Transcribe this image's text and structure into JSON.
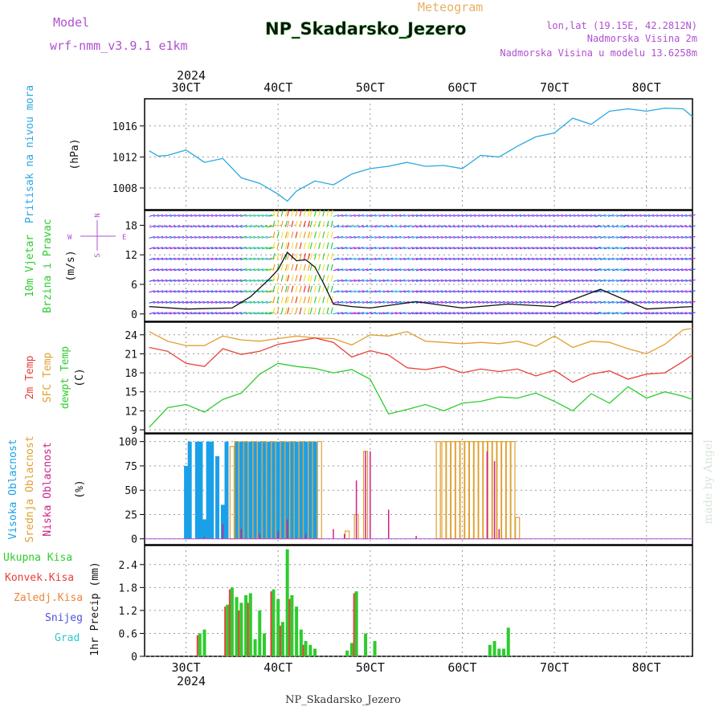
{
  "header": {
    "model_label": "Model",
    "model_value": "wrf-nmm_v3.9.1 e1km",
    "kind": "Meteogram",
    "station": "NP_Skadarsko_Jezero",
    "lonlat": "lon,lat (19.15E, 42.2812N)",
    "elev": "Nadmorska Visina 2m",
    "elev_model": "Nadmorska Visina u modelu 13.6258m",
    "footer": "NP_Skadarsko_Jezero",
    "watermark": "made by Angel"
  },
  "time_axis": {
    "top_year": "2024",
    "bottom_year": "2024",
    "ticks": [
      "30CT",
      "40CT",
      "50CT",
      "60CT",
      "70CT",
      "80CT"
    ]
  },
  "colors": {
    "pressure": "#29a8e0",
    "temp2m": "#e8403a",
    "sfctemp": "#e0a030",
    "dewpt": "#2ecc2e",
    "cloud_high": "#1aa0e8",
    "cloud_mid": "#e0a030",
    "cloud_low": "#d0208a",
    "precip_total": "#2ecc2e",
    "precip_conv": "#e8403a",
    "wind_label": "#2ecc2e",
    "wind_dir": "#b040d0"
  },
  "chart_data": [
    {
      "type": "line",
      "panel": "pressure",
      "ylabel": "Pritisak na nivou mora",
      "unit": "(hPa)",
      "yticks": [
        1008,
        1012,
        1016
      ],
      "ylim": [
        1005.2,
        1019.5
      ],
      "x": [
        2.6,
        2.7,
        2.8,
        3.0,
        3.2,
        3.4,
        3.6,
        3.8,
        4.0,
        4.1,
        4.2,
        4.4,
        4.6,
        4.8,
        5.0,
        5.2,
        5.4,
        5.6,
        5.8,
        6.0,
        6.2,
        6.4,
        6.6,
        6.8,
        7.0,
        7.2,
        7.4,
        7.6,
        7.8,
        8.0,
        8.2,
        8.4,
        8.5
      ],
      "series": [
        {
          "name": "Pritisak na nivou mora",
          "values": [
            1012.8,
            1012.1,
            1012.2,
            1012.9,
            1011.3,
            1011.8,
            1009.3,
            1008.6,
            1007.2,
            1006.3,
            1007.6,
            1008.9,
            1008.4,
            1009.8,
            1010.5,
            1010.8,
            1011.3,
            1010.8,
            1010.9,
            1010.5,
            1012.2,
            1012.0,
            1013.4,
            1014.6,
            1015.1,
            1017.0,
            1016.2,
            1017.9,
            1018.2,
            1017.9,
            1018.3,
            1018.2,
            1017.2
          ]
        }
      ]
    },
    {
      "type": "wind",
      "panel": "wind",
      "ylabel": "10m Vjetar",
      "ylabel2": "Brzina i Pravac",
      "unit": "(m/s)",
      "compass": {
        "n": "N",
        "s": "S",
        "e": "E",
        "w": "W"
      },
      "yticks": [
        0,
        6,
        12,
        18
      ],
      "ylim": [
        -1.5,
        21
      ],
      "x": [
        2.6,
        3.0,
        3.5,
        3.7,
        3.9,
        4.0,
        4.1,
        4.2,
        4.3,
        4.4,
        4.5,
        4.6,
        4.8,
        5.0,
        5.5,
        6.0,
        6.5,
        7.0,
        7.5,
        8.0,
        8.5
      ],
      "series": [
        {
          "name": "speed",
          "values": [
            1.5,
            1.0,
            1.2,
            3.5,
            7.0,
            9.0,
            12.5,
            10.8,
            11.0,
            9.5,
            6.0,
            2.0,
            1.5,
            1.2,
            2.5,
            1.2,
            2.0,
            1.5,
            5.0,
            1.0,
            1.5
          ]
        }
      ]
    },
    {
      "type": "line",
      "panel": "temperature",
      "labels": [
        "2m Temp",
        "SFC Temp",
        "dewpt Temp"
      ],
      "unit": "(C)",
      "yticks": [
        9,
        12,
        15,
        18,
        21,
        24
      ],
      "ylim": [
        8.5,
        26.0
      ],
      "x": [
        2.6,
        2.8,
        3.0,
        3.2,
        3.4,
        3.6,
        3.8,
        4.0,
        4.2,
        4.4,
        4.6,
        4.8,
        5.0,
        5.2,
        5.4,
        5.6,
        5.8,
        6.0,
        6.2,
        6.4,
        6.6,
        6.8,
        7.0,
        7.2,
        7.4,
        7.6,
        7.8,
        8.0,
        8.2,
        8.4,
        8.5
      ],
      "series": [
        {
          "name": "2m Temp",
          "values": [
            22.0,
            21.4,
            19.5,
            19.0,
            21.8,
            20.9,
            21.4,
            22.5,
            23.0,
            23.5,
            22.8,
            20.5,
            21.5,
            20.8,
            18.8,
            18.5,
            19.0,
            18.0,
            18.6,
            18.2,
            18.6,
            17.5,
            18.4,
            16.5,
            17.8,
            18.3,
            17.0,
            17.8,
            18.0,
            19.8,
            20.8
          ]
        },
        {
          "name": "SFC Temp",
          "values": [
            24.5,
            23.0,
            22.3,
            22.3,
            23.8,
            23.2,
            23.0,
            23.4,
            23.8,
            23.5,
            23.4,
            22.4,
            24.0,
            23.8,
            24.5,
            23.0,
            22.8,
            22.6,
            22.8,
            22.6,
            23.0,
            22.2,
            23.8,
            22.0,
            23.0,
            22.8,
            21.8,
            21.0,
            22.5,
            24.8,
            25.0
          ]
        },
        {
          "name": "dewpt Temp",
          "values": [
            9.4,
            12.5,
            13.0,
            11.8,
            13.8,
            14.8,
            17.8,
            19.5,
            19.0,
            18.7,
            18.0,
            18.5,
            17.0,
            11.5,
            12.2,
            13.0,
            12.0,
            13.2,
            13.5,
            14.2,
            14.0,
            14.8,
            13.5,
            12.0,
            14.7,
            13.2,
            15.8,
            14.0,
            15.0,
            14.3,
            13.8
          ]
        }
      ]
    },
    {
      "type": "bar",
      "panel": "clouds",
      "labels": [
        "Visoka Oblacnost",
        "Srednja Oblacnost",
        "Niska Oblacnost"
      ],
      "unit": "(%)",
      "yticks": [
        0,
        25,
        50,
        75,
        100
      ],
      "ylim": [
        -6,
        108
      ],
      "series": [
        {
          "name": "Visoka Oblacnost",
          "x": [
            3.0,
            3.04,
            3.12,
            3.16,
            3.2,
            3.24,
            3.28,
            3.34,
            3.4,
            3.44,
            3.55,
            3.6,
            3.65,
            3.7,
            3.75,
            3.8,
            3.85,
            3.9,
            3.95,
            4.0,
            4.05,
            4.1,
            4.15,
            4.2,
            4.25,
            4.3,
            4.35,
            4.4
          ],
          "values": [
            75,
            100,
            100,
            100,
            20,
            100,
            100,
            85,
            35,
            100,
            100,
            100,
            100,
            100,
            100,
            100,
            100,
            100,
            100,
            100,
            100,
            100,
            100,
            100,
            100,
            100,
            100,
            100
          ]
        },
        {
          "name": "Srednja Oblacnost",
          "x": [
            3.5,
            3.55,
            3.65,
            3.75,
            3.85,
            3.95,
            4.05,
            4.15,
            4.25,
            4.35,
            4.45,
            4.75,
            4.85,
            4.95,
            5.74,
            5.8,
            5.85,
            5.9,
            5.95,
            6.0,
            6.05,
            6.1,
            6.15,
            6.2,
            6.25,
            6.3,
            6.35,
            6.4,
            6.45,
            6.5,
            6.55,
            6.6
          ],
          "values": [
            95,
            100,
            100,
            100,
            100,
            100,
            100,
            100,
            100,
            100,
            100,
            8,
            25,
            90,
            100,
            100,
            100,
            100,
            100,
            100,
            100,
            100,
            100,
            100,
            100,
            100,
            100,
            100,
            100,
            100,
            100,
            22
          ]
        },
        {
          "name": "Niska Oblacnost",
          "x": [
            3.2,
            3.4,
            3.6,
            3.8,
            4.0,
            4.1,
            4.3,
            4.6,
            4.72,
            4.85,
            4.95,
            5.0,
            5.2,
            5.5,
            6.27,
            6.35,
            6.4
          ],
          "values": [
            2,
            15,
            10,
            5,
            8,
            20,
            5,
            10,
            5,
            60,
            90,
            90,
            30,
            3,
            90,
            80,
            10
          ]
        }
      ]
    },
    {
      "type": "bar",
      "panel": "precip",
      "legend": [
        "Ukupna Kisa",
        "Konvek.Kisa",
        "Zaledj.Kisa",
        "Snijeg",
        "Grad"
      ],
      "ylabel": "1hr Precip (mm)",
      "yticks": [
        0,
        0.6,
        1.2,
        1.8,
        2.4
      ],
      "ylim": [
        0,
        2.9
      ],
      "x": [
        3.15,
        3.2,
        3.45,
        3.5,
        3.55,
        3.6,
        3.65,
        3.7,
        3.75,
        3.8,
        3.85,
        3.95,
        4.0,
        4.05,
        4.1,
        4.15,
        4.2,
        4.25,
        4.3,
        4.35,
        4.4,
        4.75,
        4.8,
        4.85,
        4.95,
        5.05,
        6.3,
        6.35,
        6.4,
        6.45,
        6.5
      ],
      "series": [
        {
          "name": "Ukupna Kisa",
          "values": [
            0.6,
            0.7,
            1.35,
            1.8,
            1.55,
            1.4,
            1.6,
            1.65,
            0.45,
            1.2,
            0.6,
            1.75,
            1.5,
            0.9,
            2.8,
            1.6,
            1.3,
            0.7,
            0.4,
            0.3,
            0.2,
            0.15,
            0.35,
            1.7,
            0.6,
            0.4,
            0.3,
            0.4,
            0.2,
            0.2,
            0.75
          ]
        },
        {
          "name": "Konvek.Kisa",
          "values": [
            0.55,
            0.0,
            1.3,
            1.75,
            0.0,
            1.2,
            0.0,
            1.4,
            0.0,
            0.0,
            0.0,
            1.7,
            0.0,
            0.8,
            0.0,
            1.5,
            0.0,
            0.0,
            0.3,
            0.0,
            0.0,
            0.0,
            0.0,
            1.65,
            0.0,
            0.0,
            0.0,
            0.0,
            0.0,
            0.0,
            0.0
          ]
        }
      ]
    }
  ]
}
